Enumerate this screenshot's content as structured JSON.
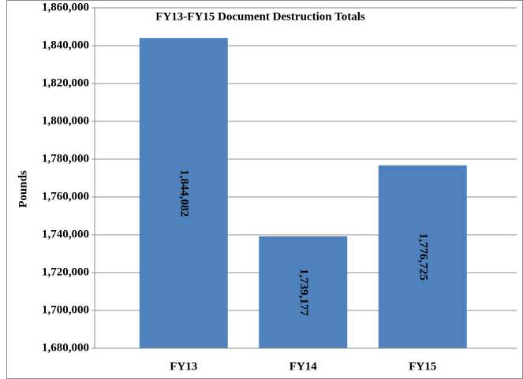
{
  "chart_data": {
    "type": "bar",
    "title": "FY13-FY15  Document Destruction Totals",
    "y_label": "Pounds",
    "categories": [
      "FY13",
      "FY14",
      "FY15"
    ],
    "values": [
      1844082,
      1739177,
      1776725
    ],
    "value_labels": [
      "1,844,082",
      "1,739,177",
      "1,776,725"
    ],
    "color": "#4f81bd",
    "ylim": [
      1680000,
      1860000
    ],
    "yticks": [
      {
        "value": 1680000,
        "label": "1,680,000"
      },
      {
        "value": 1700000,
        "label": "1,700,000"
      },
      {
        "value": 1720000,
        "label": "1,720,000"
      },
      {
        "value": 1740000,
        "label": "1,740,000"
      },
      {
        "value": 1760000,
        "label": "1,760,000"
      },
      {
        "value": 1780000,
        "label": "1,780,000"
      },
      {
        "value": 1800000,
        "label": "1,800,000"
      },
      {
        "value": 1820000,
        "label": "1,820,000"
      },
      {
        "value": 1840000,
        "label": "1,840,000"
      },
      {
        "value": 1860000,
        "label": "1,860,000"
      }
    ],
    "grid": true
  }
}
